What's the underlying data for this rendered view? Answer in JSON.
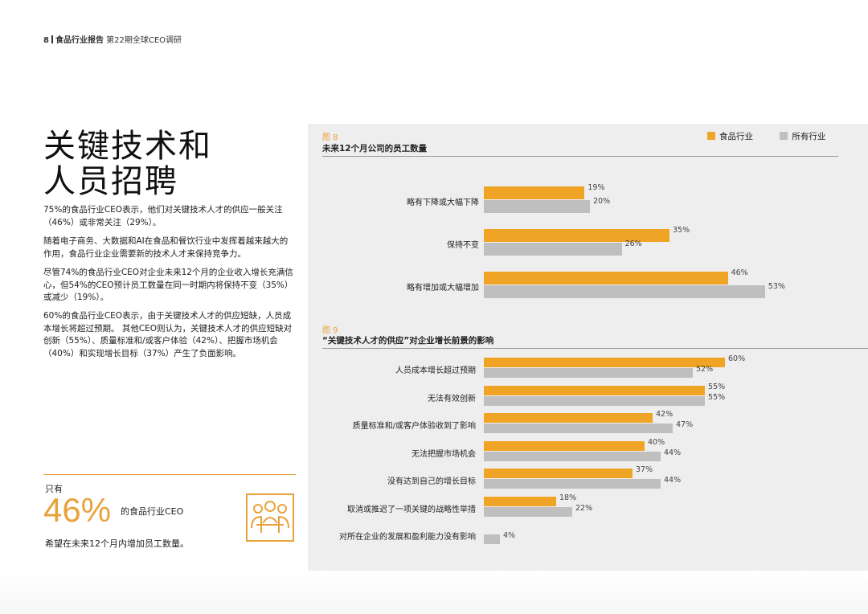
{
  "header": {
    "page_number": "8",
    "report_name": "食品行业报告",
    "subtitle": "第22期全球CEO调研"
  },
  "title_line1": "关键技术和",
  "title_line2": "人员招聘",
  "paragraphs": [
    "75%的食品行业CEO表示，他们对关键技术人才的供应一般关注（46%）或非常关注（29%）。",
    "随着电子商务、大数据和AI在食品和餐饮行业中发挥着越来越大的作用，食品行业企业需要新的技术人才来保持竞争力。",
    "尽管74%的食品行业CEO对企业未来12个月的企业收入增长充满信心，但54%的CEO预计员工数量在同一时期内将保持不变（35%）或减少（19%）。",
    "60%的食品行业CEO表示，由于关键技术人才的供应短缺，人员成本增长将超过预期。 其他CEO则认为，关键技术人才的供应短缺对创新（55%）、质量标准和/或客户体验（42%）、把握市场机会（40%）和实现增长目标（37%）产生了负面影响。"
  ],
  "callout": {
    "prefix": "只有",
    "percent": "46%",
    "suffix": "的食品行业CEO",
    "footer": "希望在未来12个月内增加员工数量。",
    "icon": "people-meeting-icon"
  },
  "legend": {
    "food": "食品行业",
    "all": "所有行业"
  },
  "colors": {
    "food": "#f0a425",
    "all": "#bfbfbf"
  },
  "chart_data": [
    {
      "type": "bar",
      "figure_label": "图 8",
      "title": "未来12个月公司的员工数量",
      "categories": [
        "略有下降或大幅下降",
        "保持不变",
        "略有增加或大幅增加"
      ],
      "series": [
        {
          "name": "食品行业",
          "values": [
            19,
            35,
            46
          ],
          "labels": [
            "19%",
            "35%",
            "46%"
          ]
        },
        {
          "name": "所有行业",
          "values": [
            20,
            26,
            53
          ],
          "labels": [
            "20%",
            "26%",
            "53%"
          ]
        }
      ],
      "legend_placement": "top-right",
      "grid": false
    },
    {
      "type": "bar",
      "figure_label": "图 9",
      "title": "“关键技术人才的供应”对企业增长前景的影响",
      "categories": [
        "人员成本增长超过预期",
        "无法有效创新",
        "质量标准和/或客户体验收到了影响",
        "无法把握市场机会",
        "没有达到自己的增长目标",
        "取消或推迟了一项关键的战略性举措",
        "对所在企业的发展和盈利能力没有影响"
      ],
      "series": [
        {
          "name": "食品行业",
          "values": [
            60,
            55,
            42,
            40,
            37,
            18,
            0
          ],
          "labels": [
            "60%",
            "55%",
            "42%",
            "40%",
            "37%",
            "18%",
            ""
          ]
        },
        {
          "name": "所有行业",
          "values": [
            52,
            55,
            47,
            44,
            44,
            22,
            4
          ],
          "labels": [
            "52%",
            "55%",
            "47%",
            "44%",
            "44%",
            "22%",
            "4%"
          ]
        }
      ],
      "grid": false
    }
  ]
}
